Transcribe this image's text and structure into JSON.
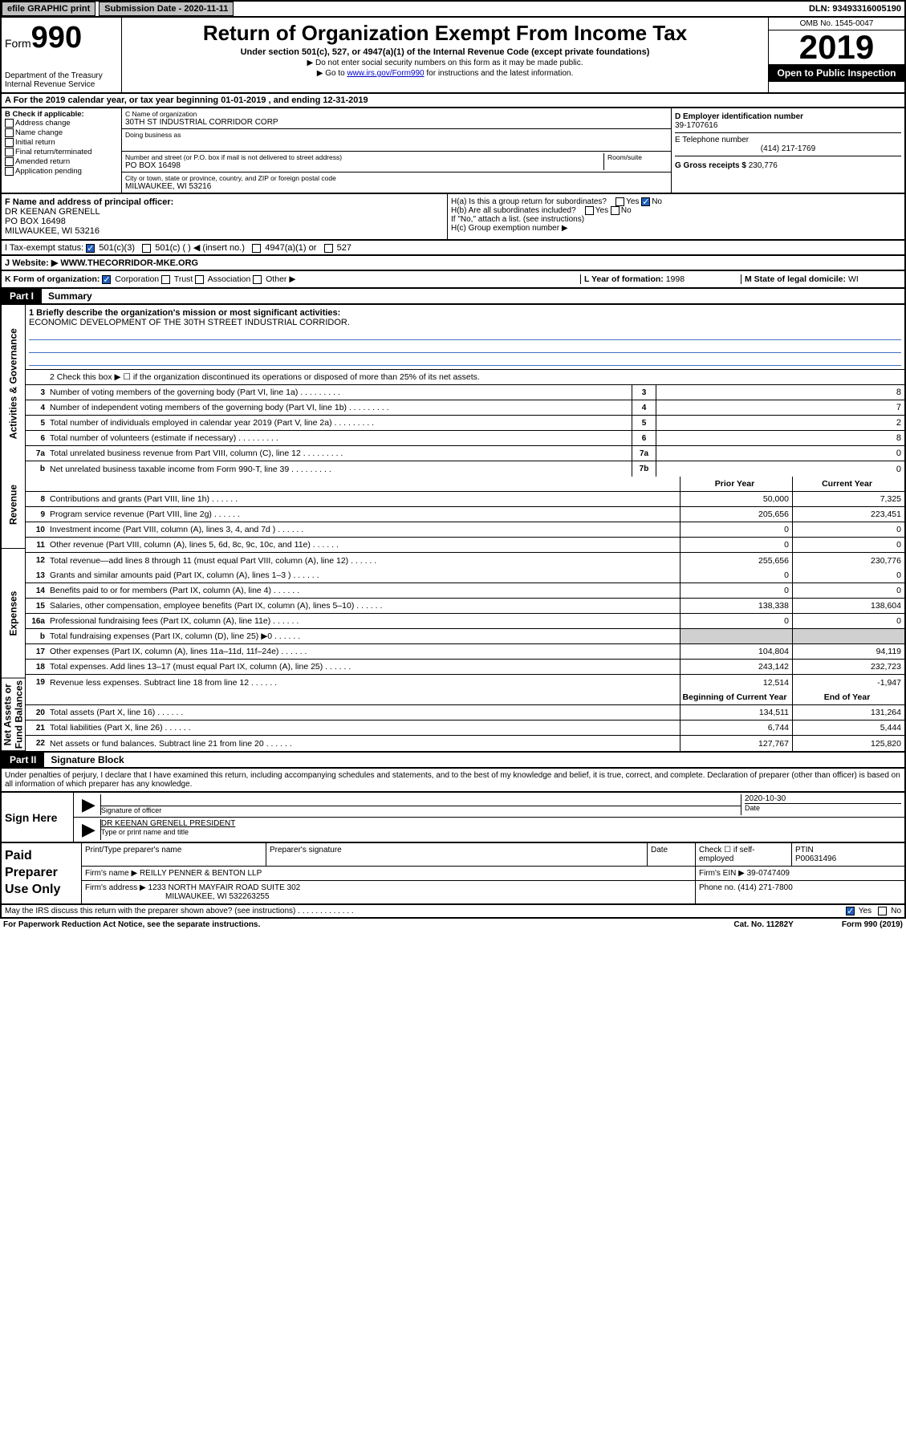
{
  "top": {
    "efile": "efile GRAPHIC print",
    "sub_date_lbl": "Submission Date - 2020-11-11",
    "dln": "DLN: 93493316005190"
  },
  "hdr": {
    "form_prefix": "Form",
    "form_num": "990",
    "dept": "Department of the Treasury\nInternal Revenue Service",
    "title": "Return of Organization Exempt From Income Tax",
    "sub": "Under section 501(c), 527, or 4947(a)(1) of the Internal Revenue Code (except private foundations)",
    "note1": "▶ Do not enter social security numbers on this form as it may be made public.",
    "note2_pre": "▶ Go to ",
    "note2_link": "www.irs.gov/Form990",
    "note2_post": " for instructions and the latest information.",
    "omb": "OMB No. 1545-0047",
    "year": "2019",
    "open": "Open to Public Inspection"
  },
  "row_a": "A For the 2019 calendar year, or tax year beginning 01-01-2019    , and ending 12-31-2019",
  "col_b": {
    "lbl": "B Check if applicable:",
    "items": [
      "Address change",
      "Name change",
      "Initial return",
      "Final return/terminated",
      "Amended return",
      "Application pending"
    ]
  },
  "col_c": {
    "name_lbl": "C Name of organization",
    "name": "30TH ST INDUSTRIAL CORRIDOR CORP",
    "dba_lbl": "Doing business as",
    "street_lbl": "Number and street (or P.O. box if mail is not delivered to street address)",
    "room_lbl": "Room/suite",
    "street": "PO BOX 16498",
    "city_lbl": "City or town, state or province, country, and ZIP or foreign postal code",
    "city": "MILWAUKEE, WI  53216"
  },
  "col_d": {
    "ein_lbl": "D Employer identification number",
    "ein": "39-1707616",
    "tel_lbl": "E Telephone number",
    "tel": "(414) 217-1769",
    "gross_lbl": "G Gross receipts $ ",
    "gross": "230,776"
  },
  "row_f": {
    "lbl": "F  Name and address of principal officer:",
    "name": "DR KEENAN GRENELL",
    "street": "PO BOX 16498",
    "city": "MILWAUKEE, WI  53216"
  },
  "row_h": {
    "a": "H(a)  Is this a group return for subordinates?",
    "b": "H(b)  Are all subordinates included?",
    "note": "If \"No,\" attach a list. (see instructions)",
    "c": "H(c)  Group exemption number ▶"
  },
  "row_i": {
    "lbl": "I    Tax-exempt status:",
    "o1": "501(c)(3)",
    "o2": "501(c) (   ) ◀ (insert no.)",
    "o3": "4947(a)(1) or",
    "o4": "527"
  },
  "row_j": {
    "lbl": "J   Website: ▶  ",
    "val": "WWW.THECORRIDOR-MKE.ORG"
  },
  "row_k": {
    "lbl": "K Form of organization:",
    "opts": [
      "Corporation",
      "Trust",
      "Association",
      "Other ▶"
    ],
    "l_lbl": "L Year of formation: ",
    "l_val": "1998",
    "m_lbl": "M State of legal domicile: ",
    "m_val": "WI"
  },
  "part1": {
    "tab": "Part I",
    "title": "Summary",
    "line1_lbl": "1  Briefly describe the organization's mission or most significant activities:",
    "line1_val": "ECONOMIC DEVELOPMENT OF THE 30TH STREET INDUSTRIAL CORRIDOR.",
    "line2": "2   Check this box ▶ ☐  if the organization discontinued its operations or disposed of more than 25% of its net assets."
  },
  "side_labels": [
    "Activities & Governance",
    "Revenue",
    "Expenses",
    "Net Assets or Fund Balances"
  ],
  "lines_gov": [
    {
      "n": "3",
      "d": "Number of voting members of the governing body (Part VI, line 1a)",
      "b": "3",
      "v": "8"
    },
    {
      "n": "4",
      "d": "Number of independent voting members of the governing body (Part VI, line 1b)",
      "b": "4",
      "v": "7"
    },
    {
      "n": "5",
      "d": "Total number of individuals employed in calendar year 2019 (Part V, line 2a)",
      "b": "5",
      "v": "2"
    },
    {
      "n": "6",
      "d": "Total number of volunteers (estimate if necessary)",
      "b": "6",
      "v": "8"
    },
    {
      "n": "7a",
      "d": "Total unrelated business revenue from Part VIII, column (C), line 12",
      "b": "7a",
      "v": "0"
    },
    {
      "n": "b",
      "d": "Net unrelated business taxable income from Form 990-T, line 39",
      "b": "7b",
      "v": "0"
    }
  ],
  "col_hdrs": {
    "py": "Prior Year",
    "cy": "Current Year",
    "boy": "Beginning of Current Year",
    "eoy": "End of Year"
  },
  "lines_rev": [
    {
      "n": "8",
      "d": "Contributions and grants (Part VIII, line 1h)",
      "py": "50,000",
      "cy": "7,325"
    },
    {
      "n": "9",
      "d": "Program service revenue (Part VIII, line 2g)",
      "py": "205,656",
      "cy": "223,451"
    },
    {
      "n": "10",
      "d": "Investment income (Part VIII, column (A), lines 3, 4, and 7d )",
      "py": "0",
      "cy": "0"
    },
    {
      "n": "11",
      "d": "Other revenue (Part VIII, column (A), lines 5, 6d, 8c, 9c, 10c, and 11e)",
      "py": "0",
      "cy": "0"
    },
    {
      "n": "12",
      "d": "Total revenue—add lines 8 through 11 (must equal Part VIII, column (A), line 12)",
      "py": "255,656",
      "cy": "230,776"
    }
  ],
  "lines_exp": [
    {
      "n": "13",
      "d": "Grants and similar amounts paid (Part IX, column (A), lines 1–3 )",
      "py": "0",
      "cy": "0"
    },
    {
      "n": "14",
      "d": "Benefits paid to or for members (Part IX, column (A), line 4)",
      "py": "0",
      "cy": "0"
    },
    {
      "n": "15",
      "d": "Salaries, other compensation, employee benefits (Part IX, column (A), lines 5–10)",
      "py": "138,338",
      "cy": "138,604"
    },
    {
      "n": "16a",
      "d": "Professional fundraising fees (Part IX, column (A), line 11e)",
      "py": "0",
      "cy": "0"
    },
    {
      "n": "b",
      "d": "Total fundraising expenses (Part IX, column (D), line 25) ▶0",
      "py": "",
      "cy": "",
      "gray": true
    },
    {
      "n": "17",
      "d": "Other expenses (Part IX, column (A), lines 11a–11d, 11f–24e)",
      "py": "104,804",
      "cy": "94,119"
    },
    {
      "n": "18",
      "d": "Total expenses. Add lines 13–17 (must equal Part IX, column (A), line 25)",
      "py": "243,142",
      "cy": "232,723"
    },
    {
      "n": "19",
      "d": "Revenue less expenses. Subtract line 18 from line 12",
      "py": "12,514",
      "cy": "-1,947"
    }
  ],
  "lines_net": [
    {
      "n": "20",
      "d": "Total assets (Part X, line 16)",
      "py": "134,511",
      "cy": "131,264"
    },
    {
      "n": "21",
      "d": "Total liabilities (Part X, line 26)",
      "py": "6,744",
      "cy": "5,444"
    },
    {
      "n": "22",
      "d": "Net assets or fund balances. Subtract line 21 from line 20",
      "py": "127,767",
      "cy": "125,820"
    }
  ],
  "part2": {
    "tab": "Part II",
    "title": "Signature Block",
    "penalty": "Under penalties of perjury, I declare that I have examined this return, including accompanying schedules and statements, and to the best of my knowledge and belief, it is true, correct, and complete. Declaration of preparer (other than officer) is based on all information of which preparer has any knowledge."
  },
  "sign": {
    "left": "Sign Here",
    "sig_lbl": "Signature of officer",
    "date": "2020-10-30",
    "date_lbl": "Date",
    "name": "DR KEENAN GRENELL PRESIDENT",
    "name_lbl": "Type or print name and title"
  },
  "paid": {
    "left": "Paid Preparer Use Only",
    "h1": "Print/Type preparer's name",
    "h2": "Preparer's signature",
    "h3": "Date",
    "h4_a": "Check ☐ if self-employed",
    "h5_lbl": "PTIN",
    "h5_val": "P00631496",
    "firm_name_lbl": "Firm's name      ▶ ",
    "firm_name": "REILLY PENNER & BENTON LLP",
    "firm_ein_lbl": "Firm's EIN ▶ ",
    "firm_ein": "39-0747409",
    "firm_addr_lbl": "Firm's address ▶ ",
    "firm_addr1": "1233 NORTH MAYFAIR ROAD SUITE 302",
    "firm_addr2": "MILWAUKEE, WI  532263255",
    "phone_lbl": "Phone no. ",
    "phone": "(414) 271-7800"
  },
  "footer": {
    "discuss": "May the IRS discuss this return with the preparer shown above? (see instructions)",
    "pra": "For Paperwork Reduction Act Notice, see the separate instructions.",
    "cat": "Cat. No. 11282Y",
    "form": "Form 990 (2019)"
  }
}
